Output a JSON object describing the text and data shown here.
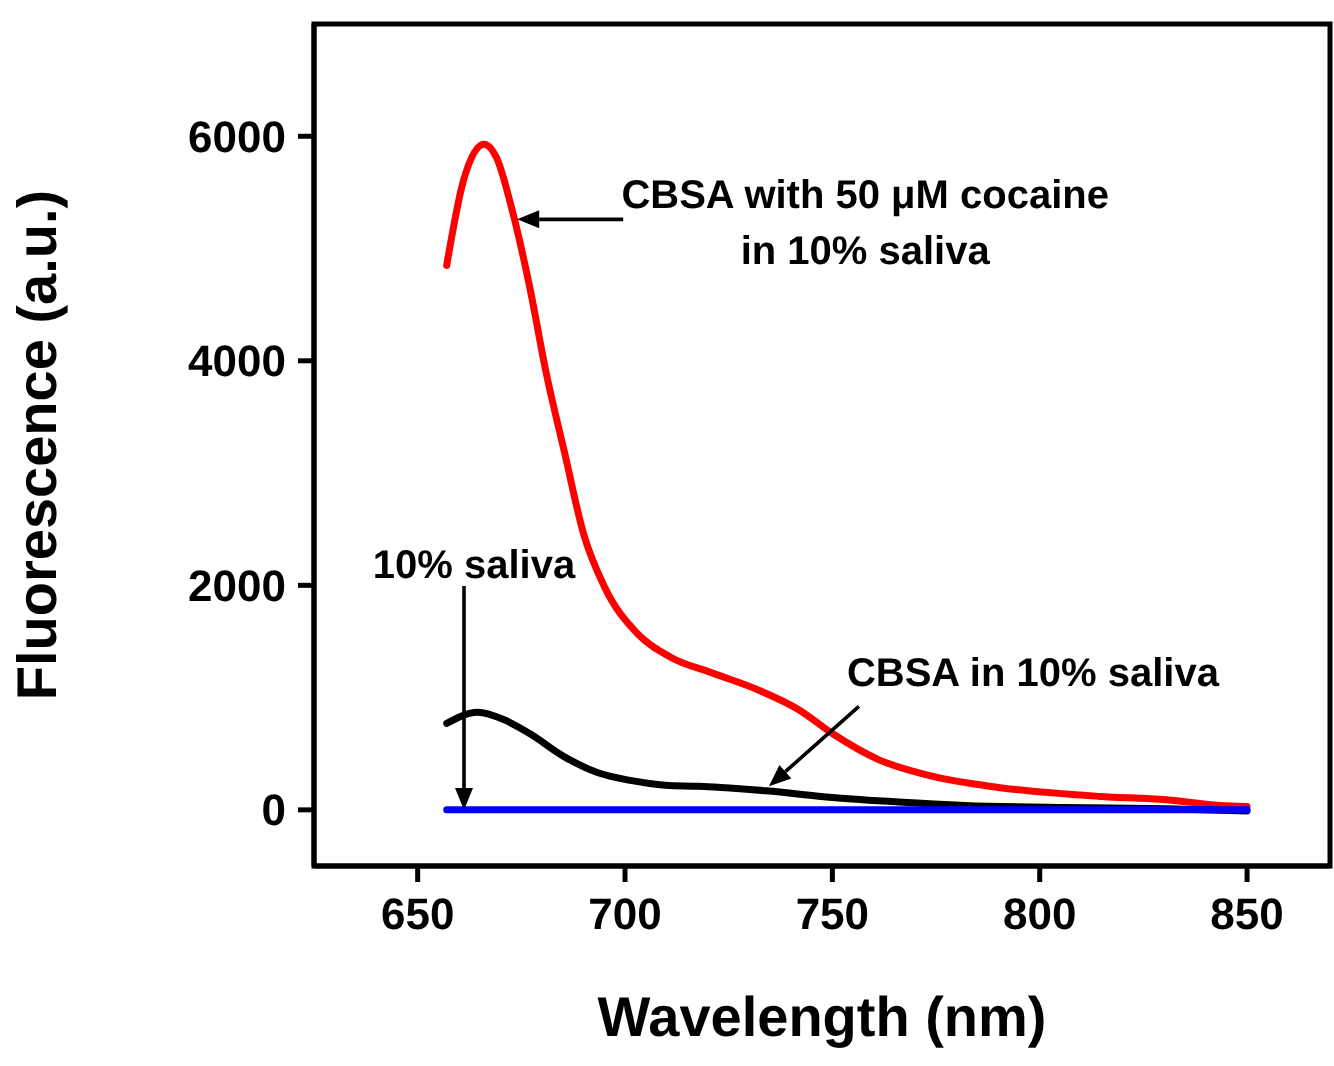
{
  "chart_data": {
    "type": "line",
    "xlabel": "Wavelength (nm)",
    "ylabel": "Fluorescence (a.u.)",
    "xlim": [
      625,
      870
    ],
    "xticks": [
      650,
      700,
      750,
      800,
      850
    ],
    "ylim": [
      -500,
      7000
    ],
    "yticks": [
      0,
      2000,
      4000,
      6000
    ],
    "grid": false,
    "legend": false,
    "marker": "none",
    "line_style": "solid",
    "series": [
      {
        "color": "#ff0000",
        "x": [
          657,
          661,
          666,
          669,
          673,
          677,
          681,
          685.5,
          690,
          695,
          703,
          711,
          721,
          732,
          742,
          750,
          761,
          774,
          790,
          814.5,
          830.6,
          843.5,
          850
        ],
        "values": [
          4850,
          5600,
          5930,
          5810,
          5310,
          4660,
          3890,
          3170,
          2460,
          1990,
          1570,
          1360,
          1220,
          1070,
          890,
          680,
          450,
          300,
          200,
          120,
          90,
          40,
          30
        ]
      },
      {
        "color": "#000000",
        "x": [
          657,
          664.5,
          671,
          677,
          685.5,
          693.5,
          701.6,
          709.7,
          717.7,
          734,
          750,
          766,
          782,
          806,
          830.6,
          850
        ],
        "values": [
          770,
          870,
          800,
          680,
          470,
          330,
          260,
          220,
          210,
          170,
          110,
          70,
          40,
          20,
          10,
          -10
        ]
      },
      {
        "color": "#0000ff",
        "x": [
          657,
          850
        ],
        "values": [
          0,
          0
        ]
      }
    ],
    "annotations": [
      {
        "text": "CBSA with 50 μM cocaine in 10% saliva",
        "x": 674,
        "y": 5260
      },
      "10% saliva",
      {
        "text": "CBSA in 10% saliva",
        "x": 734.7,
        "y": 210
      }
    ]
  }
}
